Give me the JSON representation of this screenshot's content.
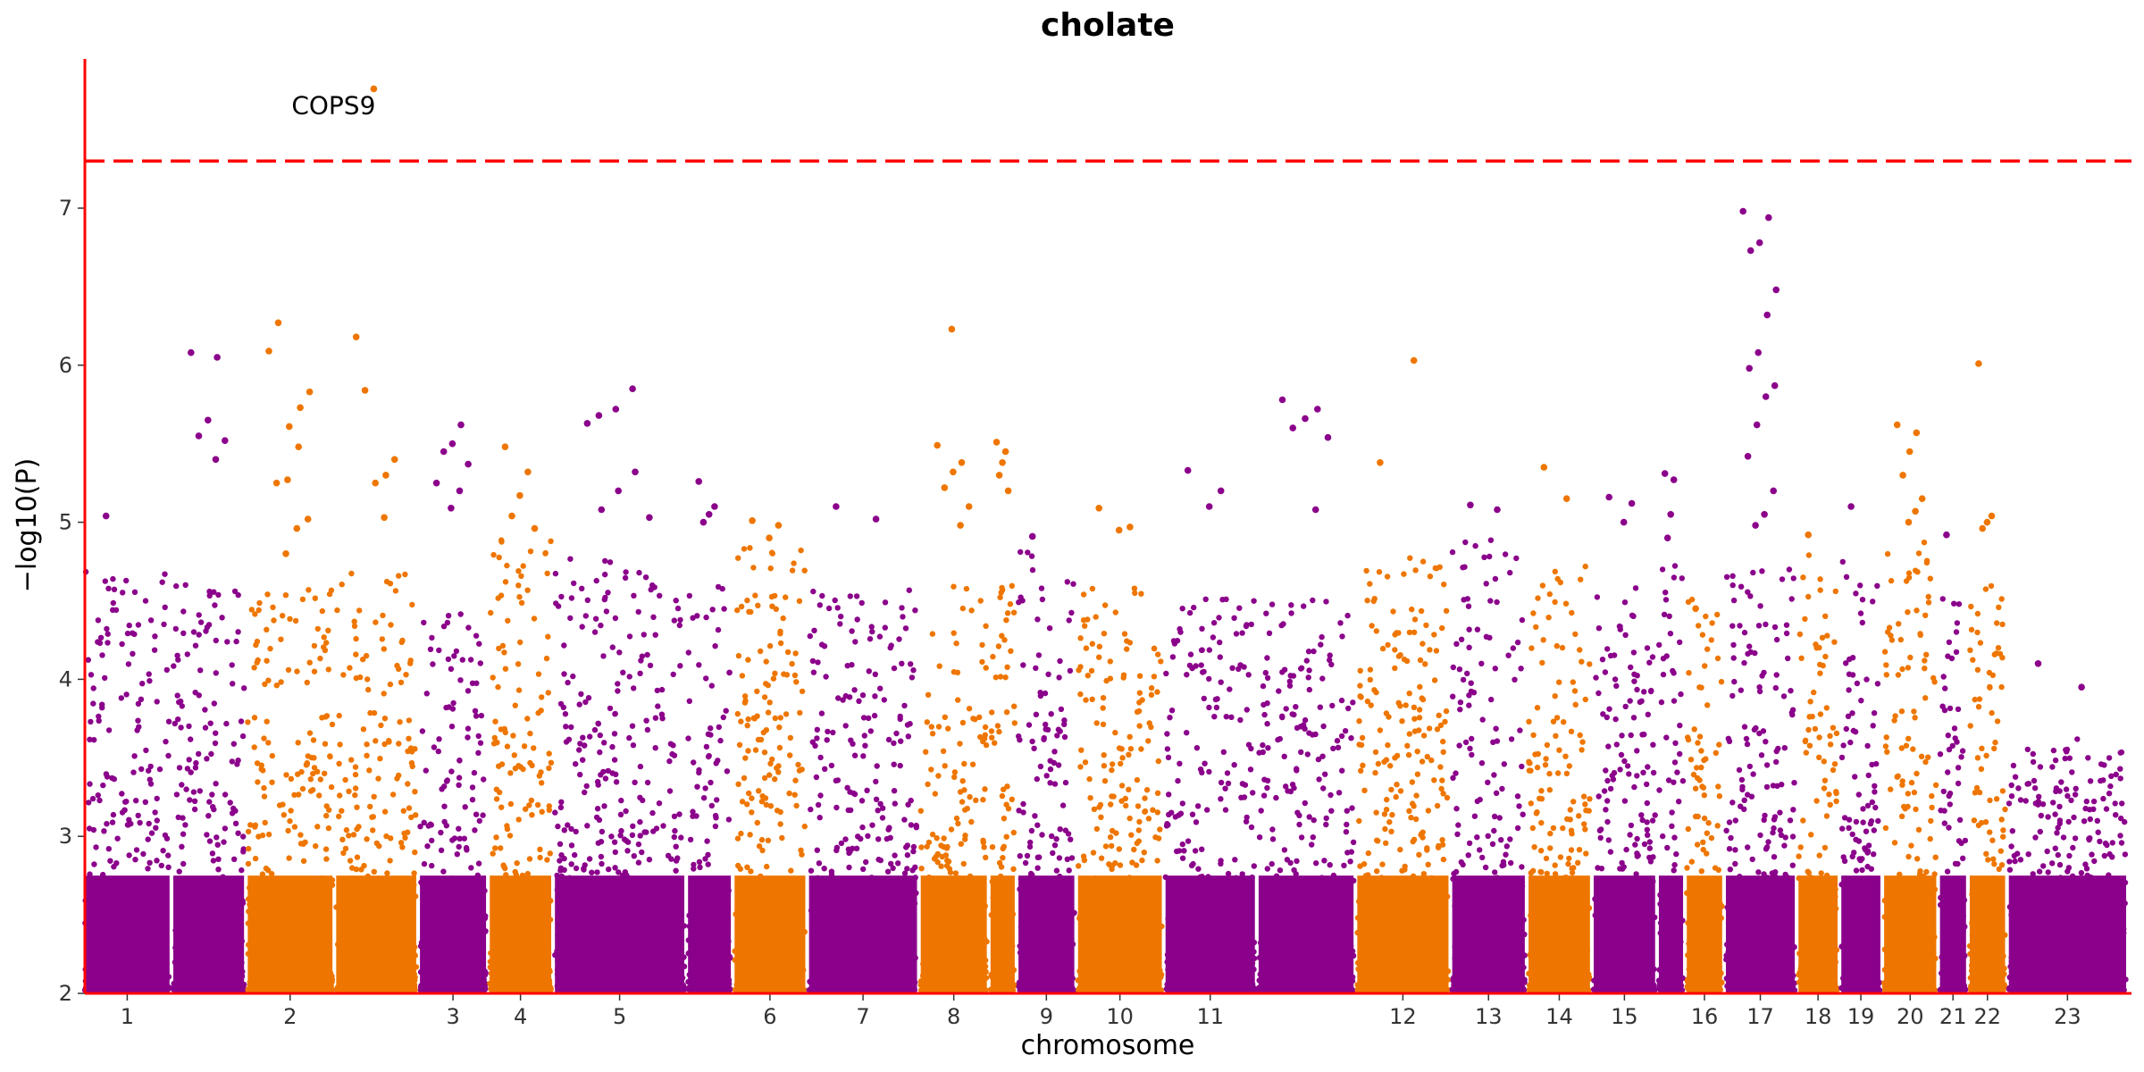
{
  "chart_data": {
    "type": "scatter",
    "subtype": "manhattan",
    "title": "cholate",
    "xlabel": "chromosome",
    "ylabel": "−log10(P)",
    "ylim": [
      2,
      7.95
    ],
    "yticks": [
      2,
      3,
      4,
      5,
      6,
      7
    ],
    "grid": false,
    "legend": "none",
    "colors": {
      "odd": "#8b008b",
      "even": "#ee7600",
      "threshold": "#ff0000",
      "axis": "#ff0000"
    },
    "significance_threshold": 7.3,
    "chromosomes": [
      {
        "label": "1",
        "peak": 4.7,
        "hits": [
          5.04
        ]
      },
      {
        "label": "",
        "peak": 4.6,
        "hits": [
          6.08,
          6.05,
          5.65,
          5.55,
          5.52,
          5.4
        ]
      },
      {
        "label": "2",
        "peak": 4.55,
        "hits": [
          6.09,
          5.73,
          5.61,
          6.27,
          5.83,
          5.48,
          5.27,
          5.25,
          5.02,
          4.96,
          4.8
        ]
      },
      {
        "label": "",
        "peak": 4.7,
        "hits": [
          6.18,
          5.3,
          5.25,
          5.84,
          5.4,
          5.03,
          7.76
        ]
      },
      {
        "label": "3",
        "peak": 4.4,
        "hits": [
          5.25,
          5.62,
          5.5,
          5.45,
          5.37,
          5.2,
          5.09
        ]
      },
      {
        "label": "4",
        "peak": 4.9,
        "hits": [
          5.48,
          5.32,
          5.17,
          5.04,
          4.96
        ]
      },
      {
        "label": "5",
        "peak": 4.75,
        "hits": [
          5.63,
          5.32,
          5.2,
          5.08,
          5.03,
          5.85,
          5.72,
          5.68
        ]
      },
      {
        "label": "",
        "peak": 4.6,
        "hits": [
          5.26,
          5.1,
          5.05,
          5.0
        ]
      },
      {
        "label": "6",
        "peak": 4.85,
        "hits": [
          5.01,
          4.98,
          4.9
        ]
      },
      {
        "label": "7",
        "peak": 4.55,
        "hits": [
          5.1,
          5.02
        ]
      },
      {
        "label": "8",
        "peak": 4.6,
        "hits": [
          5.49,
          5.38,
          5.32,
          5.22,
          5.1,
          4.98,
          6.23
        ]
      },
      {
        "label": "",
        "peak": 4.6,
        "hits": [
          5.51,
          5.45,
          5.38,
          5.3,
          5.2
        ]
      },
      {
        "label": "9",
        "peak": 4.8,
        "hits": [
          4.91
        ]
      },
      {
        "label": "10",
        "peak": 4.7,
        "hits": [
          5.09,
          4.97,
          4.95
        ]
      },
      {
        "label": "11",
        "peak": 4.5,
        "hits": [
          5.33,
          5.2,
          5.1
        ]
      },
      {
        "label": "",
        "peak": 4.5,
        "hits": [
          5.78,
          5.72,
          5.66,
          5.6,
          5.54,
          5.08
        ]
      },
      {
        "label": "12",
        "peak": 4.8,
        "hits": [
          5.38,
          6.03
        ]
      },
      {
        "label": "13",
        "peak": 4.9,
        "hits": [
          5.11,
          5.08
        ]
      },
      {
        "label": "14",
        "peak": 4.7,
        "hits": [
          5.35,
          5.15
        ]
      },
      {
        "label": "15",
        "peak": 4.6,
        "hits": [
          5.16,
          5.12,
          5.0
        ]
      },
      {
        "label": "",
        "peak": 4.8,
        "hits": [
          5.31,
          5.27,
          5.05,
          4.9
        ]
      },
      {
        "label": "16",
        "peak": 4.55,
        "hits": [
          4.45
        ]
      },
      {
        "label": "17",
        "peak": 4.7,
        "hits": [
          6.98,
          6.94,
          6.78,
          6.73,
          6.48,
          6.32,
          6.08,
          5.98,
          5.87,
          5.8,
          5.62,
          5.42,
          5.2,
          5.05,
          4.98
        ]
      },
      {
        "label": "18",
        "peak": 4.9,
        "hits": [
          4.92
        ]
      },
      {
        "label": "19",
        "peak": 4.8,
        "hits": [
          5.1
        ]
      },
      {
        "label": "20",
        "peak": 4.9,
        "hits": [
          5.62,
          5.57,
          5.45,
          5.3,
          5.15,
          5.07,
          5.0
        ]
      },
      {
        "label": "21",
        "peak": 4.6,
        "hits": [
          4.92
        ]
      },
      {
        "label": "22",
        "peak": 4.6,
        "hits": [
          6.01,
          5.04,
          5.0,
          4.96
        ]
      },
      {
        "label": "23",
        "peak": 3.6,
        "hits": [
          4.1,
          3.95
        ]
      }
    ],
    "annotations": [
      {
        "text": "COPS9",
        "x_chromosome": "2",
        "y": 7.76
      }
    ]
  }
}
